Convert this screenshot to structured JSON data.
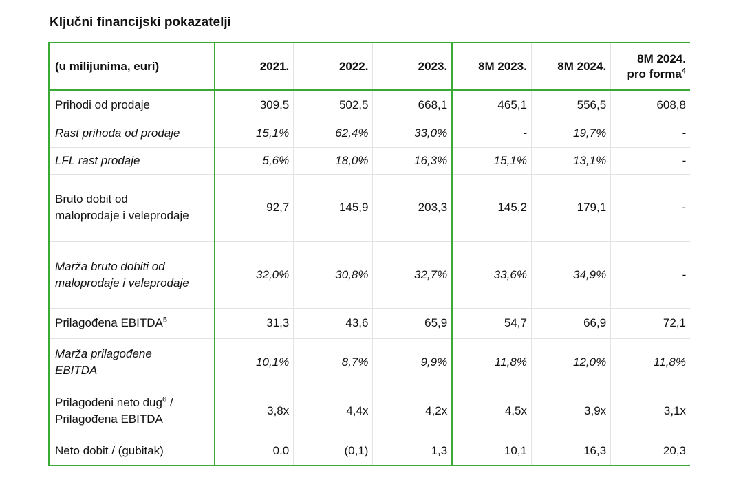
{
  "title": "Ključni financijski pokazatelji",
  "header": {
    "label": "(u milijunima, euri)",
    "columns": [
      "2021.",
      "2022.",
      "2023.",
      "8M 2023.",
      "8M 2024.",
      "8M 2024."
    ],
    "last_column_line2": "pro forma",
    "last_column_sup": "4"
  },
  "rows": [
    {
      "label_line1": "Prihodi od prodaje",
      "label_line2": "",
      "sup": "",
      "label_line3": "",
      "italic": false,
      "values": [
        "309,5",
        "502,5",
        "668,1",
        "465,1",
        "556,5",
        "608,8"
      ]
    },
    {
      "label_line1": "Rast prihoda od prodaje",
      "label_line2": "",
      "sup": "",
      "label_line3": "",
      "italic": true,
      "values": [
        "15,1%",
        "62,4%",
        "33,0%",
        "-",
        "19,7%",
        "-"
      ]
    },
    {
      "label_line1": "LFL rast prodaje",
      "label_line2": "",
      "sup": "",
      "label_line3": "",
      "italic": true,
      "values": [
        "5,6%",
        "18,0%",
        "16,3%",
        "15,1%",
        "13,1%",
        "-"
      ]
    },
    {
      "label_line1": "Bruto dobit od",
      "label_line2": "maloprodaje i veleprodaje",
      "sup": "",
      "label_line3": "",
      "italic": false,
      "values": [
        "92,7",
        "145,9",
        "203,3",
        "145,2",
        "179,1",
        "-"
      ]
    },
    {
      "label_line1": "Marža bruto dobiti od",
      "label_line2": "maloprodaje i veleprodaje",
      "sup": "",
      "label_line3": "",
      "italic": true,
      "values": [
        "32,0%",
        "30,8%",
        "32,7%",
        "33,6%",
        "34,9%",
        "-"
      ]
    },
    {
      "label_line1": "Prilagođena EBITDA",
      "label_line2": "",
      "sup": "5",
      "label_line3": "",
      "italic": false,
      "values": [
        "31,3",
        "43,6",
        "65,9",
        "54,7",
        "66,9",
        "72,1"
      ]
    },
    {
      "label_line1": "Marža prilagođene",
      "label_line2": "EBITDA",
      "sup": "",
      "label_line3": "",
      "italic": true,
      "values": [
        "10,1%",
        "8,7%",
        "9,9%",
        "11,8%",
        "12,0%",
        "11,8%"
      ]
    },
    {
      "label_line1": "Prilagođeni neto dug",
      "label_line2": "",
      "sup": "6",
      "label_line3": " / Prilagođena EBITDA",
      "italic": false,
      "values": [
        "3,8x",
        "4,4x",
        "4,2x",
        "4,5x",
        "3,9x",
        "3,1x"
      ]
    },
    {
      "label_line1": "Neto dobit / (gubitak)",
      "label_line2": "",
      "sup": "",
      "label_line3": "",
      "italic": false,
      "values": [
        "0.0",
        "(0,1)",
        "1,3",
        "10,1",
        "16,3",
        "20,3"
      ]
    }
  ],
  "colors": {
    "accent_border": "#3aa935",
    "grid": "#e3e3e3"
  }
}
